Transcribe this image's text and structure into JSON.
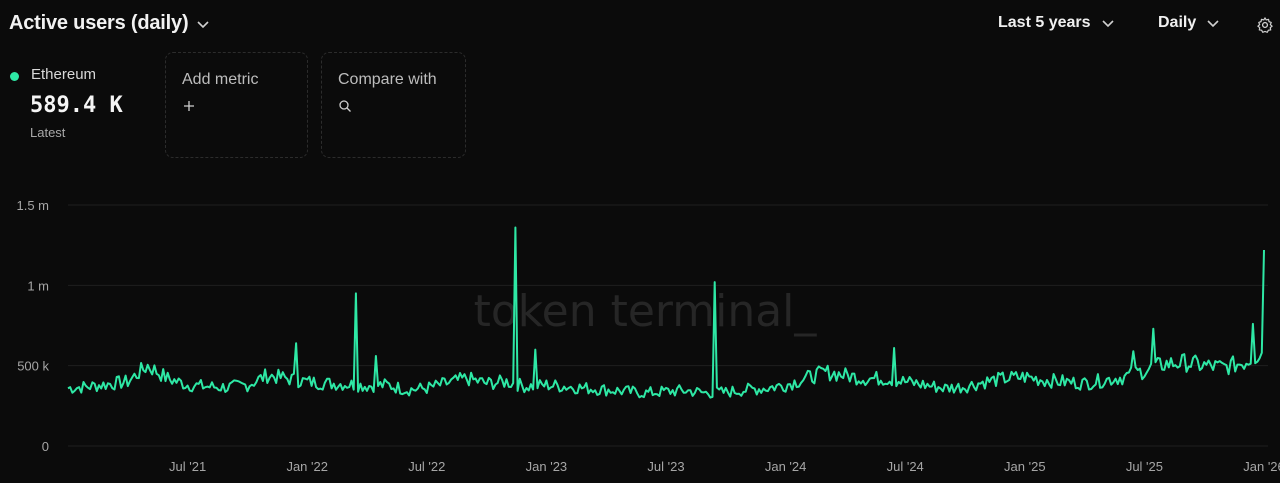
{
  "header": {
    "title": "Active users (daily)",
    "range": "Last 5 years",
    "interval": "Daily",
    "settings_icon": "gear-icon"
  },
  "legend": {
    "name": "Ethereum",
    "value": "589.4 K",
    "sub": "Latest",
    "color": "#2ee8a5"
  },
  "cards": {
    "add_metric": "Add metric",
    "add_icon": "plus-icon",
    "compare": "Compare with",
    "compare_icon": "search-icon"
  },
  "watermark": "token terminal_",
  "chart_data": {
    "type": "line",
    "series": [
      {
        "name": "Ethereum",
        "color": "#2ee8a5",
        "x": [
          "2021-01",
          "2021-02",
          "2021-03",
          "2021-04",
          "2021-05",
          "2021-06",
          "2021-07",
          "2021-08",
          "2021-09",
          "2021-10",
          "2021-11",
          "2021-12",
          "2022-01",
          "2022-02",
          "2022-03",
          "2022-04",
          "2022-05",
          "2022-06",
          "2022-07",
          "2022-08",
          "2022-09",
          "2022-10",
          "2022-11",
          "2022-12",
          "2023-01",
          "2023-02",
          "2023-03",
          "2023-04",
          "2023-05",
          "2023-06",
          "2023-07",
          "2023-08",
          "2023-09",
          "2023-10",
          "2023-11",
          "2023-12",
          "2024-01",
          "2024-02",
          "2024-03",
          "2024-04",
          "2024-05",
          "2024-06",
          "2024-07",
          "2024-08",
          "2024-09",
          "2024-10",
          "2024-11",
          "2024-12",
          "2025-01",
          "2025-02",
          "2025-03",
          "2025-04",
          "2025-05",
          "2025-06",
          "2025-07",
          "2025-08",
          "2025-09",
          "2025-10",
          "2025-11",
          "2025-12",
          "2026-01"
        ],
        "y": [
          360000,
          370000,
          385000,
          400000,
          500000,
          420000,
          380000,
          370000,
          365000,
          380000,
          440000,
          420000,
          400000,
          390000,
          385000,
          375000,
          380000,
          350000,
          360000,
          390000,
          420000,
          390000,
          400000,
          370000,
          380000,
          370000,
          360000,
          350000,
          340000,
          330000,
          340000,
          345000,
          330000,
          335000,
          350000,
          360000,
          380000,
          420000,
          460000,
          440000,
          420000,
          420000,
          400000,
          380000,
          360000,
          370000,
          400000,
          420000,
          430000,
          410000,
          400000,
          390000,
          410000,
          430000,
          470000,
          510000,
          520000,
          500000,
          490000,
          520000,
          589400
        ]
      }
    ],
    "spikes": [
      {
        "x": "2021-12",
        "y": 640000
      },
      {
        "x": "2022-03",
        "y": 950000
      },
      {
        "x": "2022-04",
        "y": 560000
      },
      {
        "x": "2022-11",
        "y": 1360000
      },
      {
        "x": "2022-12",
        "y": 600000
      },
      {
        "x": "2023-09",
        "y": 1020000
      },
      {
        "x": "2024-06",
        "y": 610000
      },
      {
        "x": "2025-06",
        "y": 590000
      },
      {
        "x": "2025-07",
        "y": 730000
      },
      {
        "x": "2025-12",
        "y": 760000
      },
      {
        "x": "2026-01",
        "y": 1220000
      }
    ],
    "xlabel": "",
    "ylabel": "",
    "ylim": [
      0,
      1500000
    ],
    "yticks": [
      0,
      500000,
      1000000,
      1500000
    ],
    "ytick_labels": [
      "0",
      "500 k",
      "1 m",
      "1.5 m"
    ],
    "xticks": [
      "2021-07",
      "2022-01",
      "2022-07",
      "2023-01",
      "2023-07",
      "2024-01",
      "2024-07",
      "2025-01",
      "2025-07",
      "2026-01"
    ],
    "xtick_labels": [
      "Jul '21",
      "Jan '22",
      "Jul '22",
      "Jan '23",
      "Jul '23",
      "Jan '24",
      "Jul '24",
      "Jan '25",
      "Jul '25",
      "Jan '26"
    ],
    "x_range": [
      "2021-01",
      "2026-01"
    ],
    "grid": true,
    "gridcolor": "#1f1f1f"
  }
}
